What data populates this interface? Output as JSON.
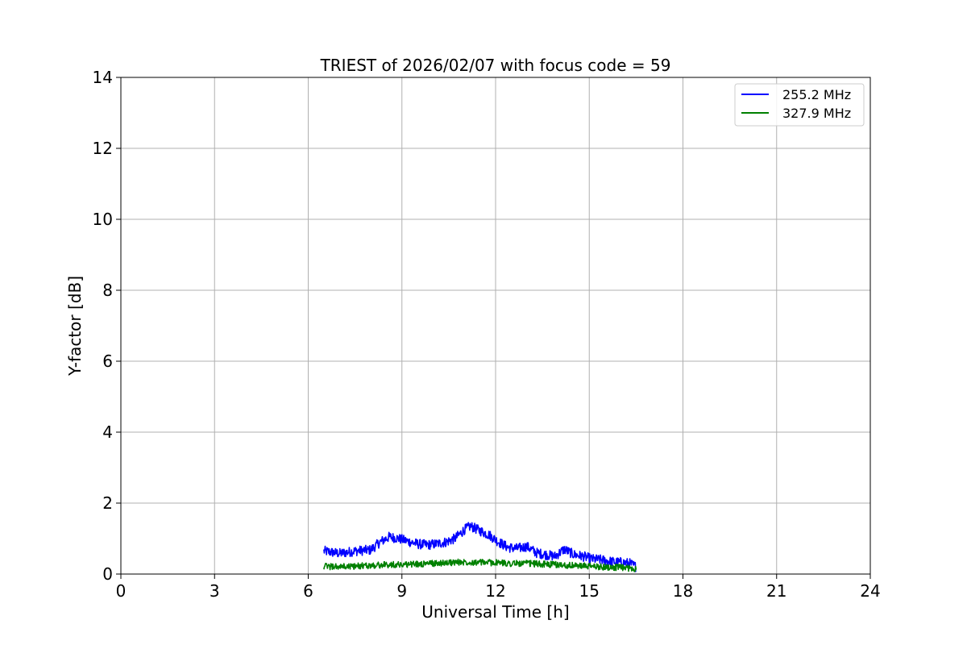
{
  "chart_data": {
    "type": "line",
    "title": "TRIEST of 2026/02/07 with focus code = 59",
    "xlabel": "Universal Time [h]",
    "ylabel": "Y-factor [dB]",
    "xlim": [
      0,
      24
    ],
    "ylim": [
      0,
      14
    ],
    "xticks": [
      0,
      3,
      6,
      9,
      12,
      15,
      18,
      21,
      24
    ],
    "yticks": [
      0,
      2,
      4,
      6,
      8,
      10,
      12,
      14
    ],
    "grid": true,
    "legend_position": "top-right",
    "series": [
      {
        "name": "255.2 MHz",
        "color": "#0000ff",
        "x": [
          6.5,
          7.0,
          7.5,
          8.0,
          8.3,
          8.6,
          8.9,
          9.2,
          9.5,
          9.8,
          10.1,
          10.4,
          10.7,
          11.0,
          11.2,
          11.5,
          11.8,
          12.1,
          12.4,
          12.7,
          13.0,
          13.3,
          13.6,
          13.9,
          14.2,
          14.5,
          14.8,
          15.1,
          15.4,
          15.7,
          16.0,
          16.3,
          16.5
        ],
        "y": [
          0.65,
          0.58,
          0.65,
          0.68,
          0.9,
          1.05,
          1.0,
          0.92,
          0.85,
          0.82,
          0.85,
          0.9,
          1.0,
          1.25,
          1.35,
          1.22,
          1.1,
          0.9,
          0.75,
          0.72,
          0.78,
          0.6,
          0.55,
          0.5,
          0.7,
          0.55,
          0.5,
          0.42,
          0.4,
          0.35,
          0.33,
          0.3,
          0.2
        ]
      },
      {
        "name": "327.9 MHz",
        "color": "#008000",
        "x": [
          6.5,
          7.0,
          7.5,
          8.0,
          8.5,
          9.0,
          9.5,
          10.0,
          10.5,
          11.0,
          11.5,
          12.0,
          12.5,
          13.0,
          13.5,
          14.0,
          14.5,
          15.0,
          15.5,
          16.0,
          16.5
        ],
        "y": [
          0.22,
          0.2,
          0.22,
          0.24,
          0.26,
          0.27,
          0.28,
          0.3,
          0.32,
          0.34,
          0.33,
          0.32,
          0.3,
          0.3,
          0.28,
          0.26,
          0.24,
          0.22,
          0.2,
          0.18,
          0.15
        ]
      }
    ]
  }
}
